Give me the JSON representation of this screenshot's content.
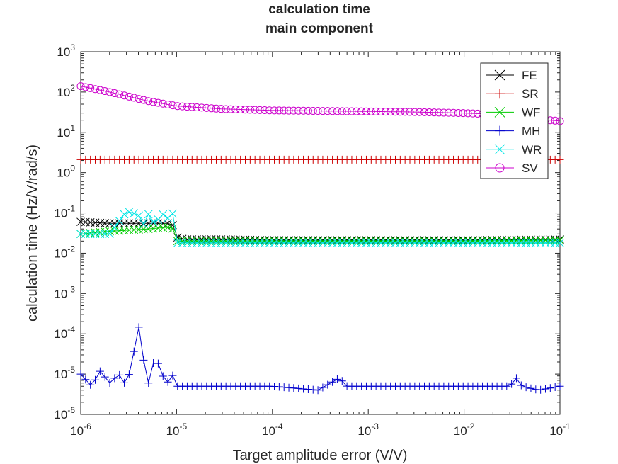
{
  "chart_data": {
    "type": "line",
    "title": [
      "calculation time",
      "main component"
    ],
    "xlabel": "Target amplitude error (V/V)",
    "ylabel": "calculation time (Hz/V/rad/s)",
    "x_scale": "log",
    "y_scale": "log",
    "xlim": [
      1e-06,
      0.1
    ],
    "ylim": [
      1e-06,
      1000
    ],
    "x_ticks": [
      {
        "value": 1e-06,
        "base": "10",
        "exp": "-6"
      },
      {
        "value": 1e-05,
        "base": "10",
        "exp": "-5"
      },
      {
        "value": 0.0001,
        "base": "10",
        "exp": "-4"
      },
      {
        "value": 0.001,
        "base": "10",
        "exp": "-3"
      },
      {
        "value": 0.01,
        "base": "10",
        "exp": "-2"
      },
      {
        "value": 0.1,
        "base": "10",
        "exp": "-1"
      }
    ],
    "y_ticks": [
      {
        "value": 1e-06,
        "base": "10",
        "exp": "-6"
      },
      {
        "value": 1e-05,
        "base": "10",
        "exp": "-5"
      },
      {
        "value": 0.0001,
        "base": "10",
        "exp": "-4"
      },
      {
        "value": 0.001,
        "base": "10",
        "exp": "-3"
      },
      {
        "value": 0.01,
        "base": "10",
        "exp": "-2"
      },
      {
        "value": 0.1,
        "base": "10",
        "exp": "-1"
      },
      {
        "value": 1,
        "base": "10",
        "exp": "0"
      },
      {
        "value": 10,
        "base": "10",
        "exp": "1"
      },
      {
        "value": 100,
        "base": "10",
        "exp": "2"
      },
      {
        "value": 1000,
        "base": "10",
        "exp": "3"
      }
    ],
    "grid": false,
    "legend_position": "top-right",
    "series": [
      {
        "name": "FE",
        "color": "#000000",
        "marker": "x",
        "x": [
          1e-06,
          2e-06,
          5e-06,
          9e-06,
          1e-05,
          1.2e-05,
          3e-05,
          0.0001,
          0.001,
          0.01,
          0.1
        ],
        "y": [
          0.06,
          0.055,
          0.055,
          0.055,
          0.025,
          0.022,
          0.022,
          0.021,
          0.021,
          0.021,
          0.022
        ]
      },
      {
        "name": "SR",
        "color": "#cc0000",
        "marker": "+",
        "x": [
          1e-06,
          1e-05,
          0.0001,
          0.001,
          0.01,
          0.1
        ],
        "y": [
          2.1,
          2.1,
          2.1,
          2.1,
          2.1,
          2.1
        ]
      },
      {
        "name": "WF",
        "color": "#00cc00",
        "marker": "x",
        "x": [
          1e-06,
          2e-06,
          5e-06,
          9e-06,
          1e-05,
          3e-05,
          0.0001,
          0.001,
          0.01,
          0.1
        ],
        "y": [
          0.03,
          0.035,
          0.04,
          0.045,
          0.02,
          0.02,
          0.02,
          0.02,
          0.02,
          0.021
        ]
      },
      {
        "name": "MH",
        "color": "#0000cc",
        "marker": "+",
        "x": [
          1e-06,
          1.3e-06,
          1.6e-06,
          2e-06,
          2.5e-06,
          3e-06,
          3.5e-06,
          4e-06,
          4.5e-06,
          5e-06,
          6e-06,
          7e-06,
          8e-06,
          9e-06,
          1e-05,
          1.2e-05,
          2e-05,
          4e-05,
          0.0001,
          0.0003,
          0.0005,
          0.0006,
          0.001,
          0.003,
          0.01,
          0.03,
          0.035,
          0.04,
          0.06,
          0.1
        ],
        "y": [
          1e-05,
          5e-06,
          1.2e-05,
          6e-06,
          1e-05,
          5e-06,
          2.5e-05,
          0.00017,
          2.5e-05,
          5e-06,
          3e-05,
          1e-05,
          6e-06,
          1e-05,
          5e-06,
          5e-06,
          5e-06,
          5e-06,
          5e-06,
          4e-06,
          8e-06,
          5e-06,
          5e-06,
          5e-06,
          5e-06,
          5e-06,
          8e-06,
          5e-06,
          4e-06,
          5e-06
        ]
      },
      {
        "name": "WR",
        "color": "#00e5e5",
        "marker": "x",
        "x": [
          1e-06,
          2e-06,
          2.5e-06,
          3e-06,
          3.5e-06,
          4e-06,
          4.5e-06,
          5e-06,
          6e-06,
          7e-06,
          8e-06,
          9e-06,
          1e-05,
          3e-05,
          0.0001,
          0.001,
          0.01,
          0.1
        ],
        "y": [
          0.03,
          0.03,
          0.06,
          0.11,
          0.1,
          0.09,
          0.05,
          0.1,
          0.05,
          0.1,
          0.07,
          0.12,
          0.018,
          0.018,
          0.018,
          0.018,
          0.018,
          0.018
        ]
      },
      {
        "name": "SV",
        "color": "#cc00cc",
        "marker": "o",
        "x": [
          1e-06,
          2e-06,
          5e-06,
          1e-05,
          3e-05,
          0.0001,
          0.001,
          0.003,
          0.01,
          0.02,
          0.05,
          0.1
        ],
        "y": [
          140,
          100,
          60,
          45,
          38,
          35,
          33,
          32,
          30,
          28,
          22,
          19
        ]
      }
    ]
  }
}
